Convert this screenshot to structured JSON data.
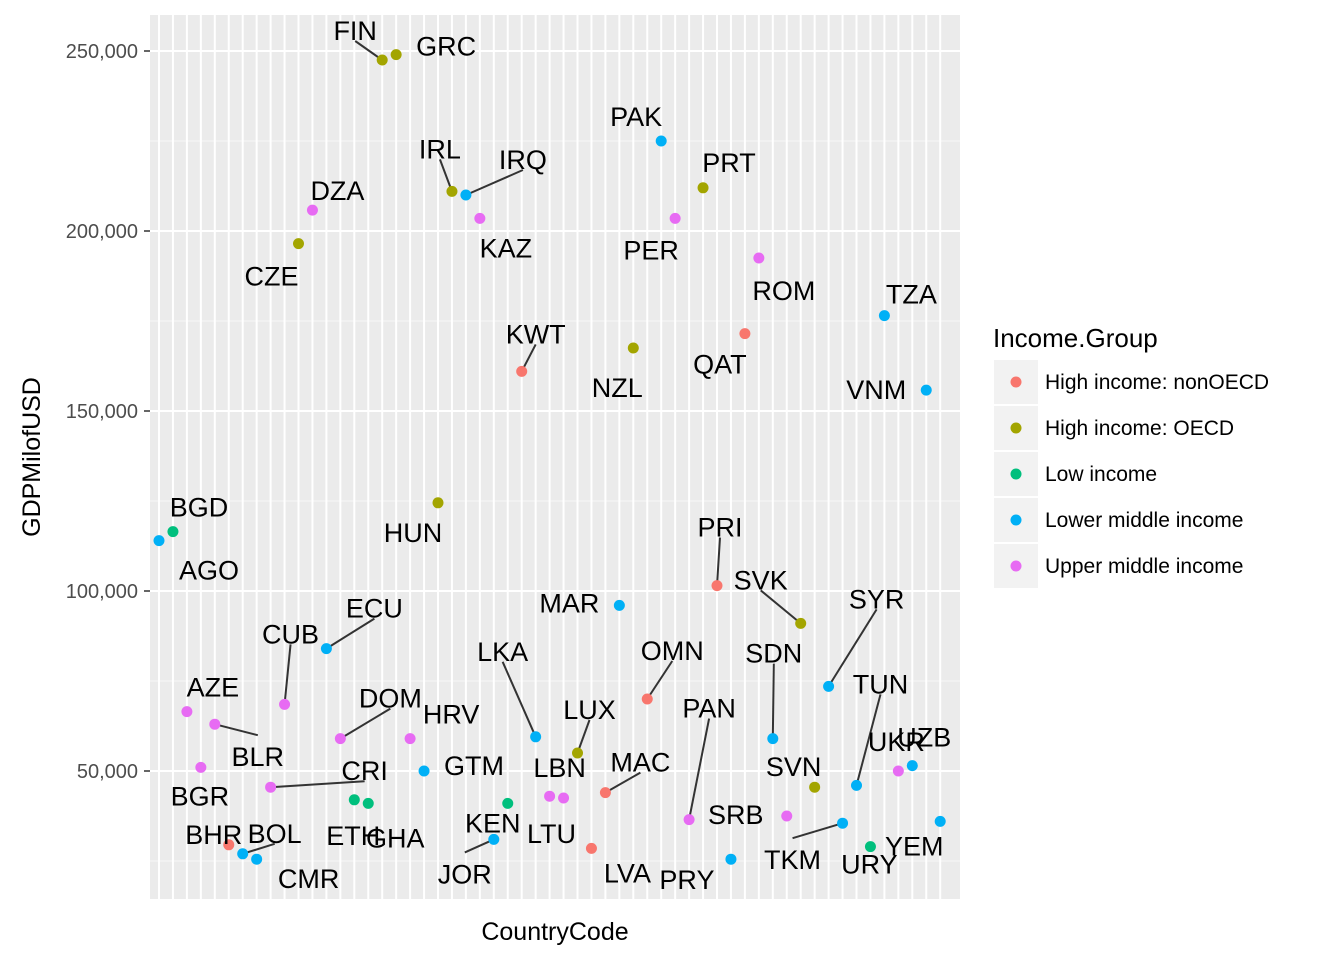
{
  "chart_data": {
    "type": "scatter",
    "xlabel": "CountryCode",
    "ylabel": "GDPMilofUSD",
    "ylim": [
      15000,
      260000
    ],
    "y_ticks": [
      {
        "value": 50000,
        "label": "50,000"
      },
      {
        "value": 100000,
        "label": "100,000"
      },
      {
        "value": 150000,
        "label": "150,000"
      },
      {
        "value": 200000,
        "label": "200,000"
      },
      {
        "value": 250000,
        "label": "250,000"
      }
    ],
    "grid": true,
    "legend": {
      "title": "Income.Group",
      "position": "right",
      "entries": [
        {
          "name": "High income: nonOECD",
          "color": "#F8766D"
        },
        {
          "name": "High income: OECD",
          "color": "#A3A500"
        },
        {
          "name": "Low income",
          "color": "#00BF7D"
        },
        {
          "name": "Lower middle income",
          "color": "#00B0F6"
        },
        {
          "name": "Upper middle income",
          "color": "#E76BF3"
        }
      ]
    },
    "categories": [
      "AGO",
      "BGD",
      "AZE",
      "BGR",
      "BLR",
      "BHR",
      "BOL",
      "CMR",
      "CRI",
      "CUB",
      "CZE",
      "DZA",
      "ECU",
      "DOM",
      "ETH",
      "GHA",
      "FIN",
      "GRC",
      "HRV",
      "GTM",
      "HUN",
      "IRL",
      "IRQ",
      "KAZ",
      "JOR",
      "KEN",
      "KWT",
      "LKA",
      "LBN",
      "LTU",
      "LUX",
      "LVA",
      "MAC",
      "MAR",
      "NZL",
      "OMN",
      "PAK",
      "PER",
      "PAN",
      "PRT",
      "PRI",
      "PRY",
      "QAT",
      "ROM",
      "SDN",
      "SRB",
      "SVK",
      "SVN",
      "SYR",
      "TKM",
      "TUN",
      "URY",
      "TZA",
      "UKR",
      "UZB",
      "VNM",
      "YEM"
    ],
    "points": [
      {
        "code": "AGO",
        "y": 114000,
        "group": "Lower middle income"
      },
      {
        "code": "BGD",
        "y": 116500,
        "group": "Low income"
      },
      {
        "code": "AZE",
        "y": 66500,
        "group": "Upper middle income"
      },
      {
        "code": "BGR",
        "y": 51000,
        "group": "Upper middle income"
      },
      {
        "code": "BLR",
        "y": 63000,
        "group": "Upper middle income"
      },
      {
        "code": "BHR",
        "y": 29500,
        "group": "High income: nonOECD"
      },
      {
        "code": "BOL",
        "y": 27000,
        "group": "Lower middle income"
      },
      {
        "code": "CMR",
        "y": 25500,
        "group": "Lower middle income"
      },
      {
        "code": "CRI",
        "y": 45500,
        "group": "Upper middle income"
      },
      {
        "code": "CUB",
        "y": 68500,
        "group": "Upper middle income"
      },
      {
        "code": "CZE",
        "y": 196500,
        "group": "High income: OECD"
      },
      {
        "code": "DZA",
        "y": 205800,
        "group": "Upper middle income"
      },
      {
        "code": "ECU",
        "y": 84000,
        "group": "Lower middle income"
      },
      {
        "code": "DOM",
        "y": 59000,
        "group": "Upper middle income"
      },
      {
        "code": "ETH",
        "y": 42000,
        "group": "Low income"
      },
      {
        "code": "GHA",
        "y": 41000,
        "group": "Low income"
      },
      {
        "code": "FIN",
        "y": 247500,
        "group": "High income: OECD"
      },
      {
        "code": "GRC",
        "y": 249000,
        "group": "High income: OECD"
      },
      {
        "code": "HRV",
        "y": 59000,
        "group": "Upper middle income"
      },
      {
        "code": "GTM",
        "y": 50000,
        "group": "Lower middle income"
      },
      {
        "code": "HUN",
        "y": 124500,
        "group": "High income: OECD"
      },
      {
        "code": "IRL",
        "y": 211000,
        "group": "High income: OECD"
      },
      {
        "code": "IRQ",
        "y": 210000,
        "group": "Lower middle income"
      },
      {
        "code": "KAZ",
        "y": 203500,
        "group": "Upper middle income"
      },
      {
        "code": "JOR",
        "y": 31000,
        "group": "Lower middle income"
      },
      {
        "code": "KEN",
        "y": 41000,
        "group": "Low income"
      },
      {
        "code": "KWT",
        "y": 161000,
        "group": "High income: nonOECD"
      },
      {
        "code": "LKA",
        "y": 59500,
        "group": "Lower middle income"
      },
      {
        "code": "LBN",
        "y": 43000,
        "group": "Upper middle income"
      },
      {
        "code": "LTU",
        "y": 42500,
        "group": "Upper middle income"
      },
      {
        "code": "LUX",
        "y": 55000,
        "group": "High income: OECD"
      },
      {
        "code": "LVA",
        "y": 28500,
        "group": "High income: nonOECD"
      },
      {
        "code": "MAC",
        "y": 44000,
        "group": "High income: nonOECD"
      },
      {
        "code": "MAR",
        "y": 96000,
        "group": "Lower middle income"
      },
      {
        "code": "NZL",
        "y": 167500,
        "group": "High income: OECD"
      },
      {
        "code": "OMN",
        "y": 70000,
        "group": "High income: nonOECD"
      },
      {
        "code": "PAK",
        "y": 225000,
        "group": "Lower middle income"
      },
      {
        "code": "PER",
        "y": 203500,
        "group": "Upper middle income"
      },
      {
        "code": "PAN",
        "y": 36500,
        "group": "Upper middle income"
      },
      {
        "code": "PRT",
        "y": 212000,
        "group": "High income: OECD"
      },
      {
        "code": "PRI",
        "y": 101500,
        "group": "High income: nonOECD"
      },
      {
        "code": "PRY",
        "y": 25500,
        "group": "Lower middle income"
      },
      {
        "code": "QAT",
        "y": 171500,
        "group": "High income: nonOECD"
      },
      {
        "code": "ROM",
        "y": 192500,
        "group": "Upper middle income"
      },
      {
        "code": "SDN",
        "y": 59000,
        "group": "Lower middle income"
      },
      {
        "code": "SRB",
        "y": 37500,
        "group": "Upper middle income"
      },
      {
        "code": "SVK",
        "y": 91000,
        "group": "High income: OECD"
      },
      {
        "code": "SVN",
        "y": 45500,
        "group": "High income: OECD"
      },
      {
        "code": "SYR",
        "y": 73500,
        "group": "Lower middle income"
      },
      {
        "code": "TKM",
        "y": 35500,
        "group": "Lower middle income"
      },
      {
        "code": "TUN",
        "y": 46000,
        "group": "Lower middle income"
      },
      {
        "code": "URY",
        "y": 29000,
        "group": "Low income"
      },
      {
        "code": "TZA",
        "y": 176500,
        "group": "Lower middle income"
      },
      {
        "code": "UKR",
        "y": 50000,
        "group": "Upper middle income"
      },
      {
        "code": "UZB",
        "y": 51500,
        "group": "Lower middle income"
      },
      {
        "code": "VNM",
        "y": 155800,
        "group": "Lower middle income"
      },
      {
        "code": "YEM",
        "y": 36000,
        "group": "Lower middle income"
      }
    ]
  }
}
